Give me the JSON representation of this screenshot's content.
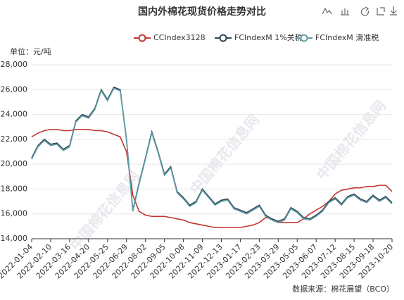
{
  "chart_data": {
    "type": "line",
    "title": "国内外棉花现货价格走势对比",
    "y_unit_label": "单位：元/吨",
    "source": "数据来源：棉花展望（BCO）",
    "watermark": "中国棉花信息网",
    "categories": [
      "2022-01-04",
      null,
      null,
      "2022-02-10",
      null,
      null,
      "2022-03-16",
      null,
      null,
      "2022-04-20",
      null,
      null,
      "2022-05-25",
      null,
      null,
      "2022-06-29",
      null,
      null,
      "2022-08-02",
      null,
      null,
      "2022-09-05",
      null,
      null,
      "2022-10-08",
      null,
      null,
      "2022-11-09",
      null,
      null,
      "2022-12-13",
      null,
      null,
      "2023-01-17",
      null,
      null,
      "2023-02-23",
      null,
      null,
      "2023-03-29",
      null,
      null,
      "2023-05-05",
      null,
      null,
      "2023-06-07",
      null,
      null,
      "2023-07-12",
      null,
      null,
      "2023-08-15",
      null,
      null,
      "2023-09-18",
      null,
      null,
      "2023-10-20"
    ],
    "series": [
      {
        "name": "CCIndex3128",
        "color": "#c23531",
        "values": [
          22200,
          22500,
          22700,
          22800,
          22800,
          22700,
          22700,
          22800,
          22800,
          22800,
          22700,
          22700,
          22600,
          22400,
          22200,
          21000,
          17500,
          16200,
          15900,
          15800,
          15800,
          15800,
          15700,
          15600,
          15500,
          15300,
          15200,
          15100,
          15000,
          14900,
          14900,
          14900,
          14900,
          14900,
          15000,
          15100,
          15300,
          15700,
          15600,
          15300,
          15300,
          15300,
          15300,
          15600,
          16000,
          16300,
          16600,
          17000,
          17600,
          17900,
          18000,
          18100,
          18100,
          18200,
          18200,
          18300,
          18300,
          17800
        ]
      },
      {
        "name": "FCIndexM 1%关税",
        "color": "#2f4554",
        "values": [
          20500,
          21500,
          22000,
          21600,
          21700,
          21200,
          21500,
          23500,
          24000,
          23800,
          24500,
          26000,
          25200,
          26200,
          26000,
          22000,
          16300,
          18500,
          20500,
          22600,
          21000,
          19200,
          19800,
          17800,
          17300,
          16700,
          17000,
          18000,
          17400,
          16800,
          17100,
          17200,
          16500,
          16300,
          16100,
          16400,
          16700,
          15900,
          15600,
          15400,
          15600,
          16500,
          16200,
          15700,
          15600,
          15900,
          16300,
          17000,
          17300,
          16800,
          17400,
          17600,
          17200,
          17000,
          17500,
          17100,
          17400,
          16900
        ]
      },
      {
        "name": "FCIndexM 滑准税",
        "color": "#61a0a8",
        "values": [
          20400,
          21400,
          21900,
          21500,
          21600,
          21100,
          21400,
          23400,
          23900,
          23700,
          24400,
          25900,
          25100,
          26100,
          25900,
          21900,
          16200,
          18400,
          20400,
          22500,
          20900,
          19100,
          19700,
          17700,
          17200,
          16600,
          16900,
          17900,
          17300,
          16700,
          17000,
          17100,
          16400,
          16200,
          16000,
          16300,
          16600,
          15800,
          15500,
          15300,
          15500,
          16400,
          16100,
          15600,
          15500,
          15800,
          16200,
          16900,
          17200,
          16700,
          17300,
          17500,
          17100,
          16900,
          17400,
          17000,
          17300,
          16800
        ]
      }
    ],
    "ylim": [
      14000,
      28000
    ],
    "yticks": [
      {
        "value": 14000,
        "label": "14,000"
      },
      {
        "value": 16000,
        "label": "16,000"
      },
      {
        "value": 18000,
        "label": "18,000"
      },
      {
        "value": 20000,
        "label": "20,000"
      },
      {
        "value": 22000,
        "label": "22,000"
      },
      {
        "value": 24000,
        "label": "24,000"
      },
      {
        "value": 26000,
        "label": "26,000"
      },
      {
        "value": 28000,
        "label": "28,000"
      }
    ],
    "grid": true
  }
}
